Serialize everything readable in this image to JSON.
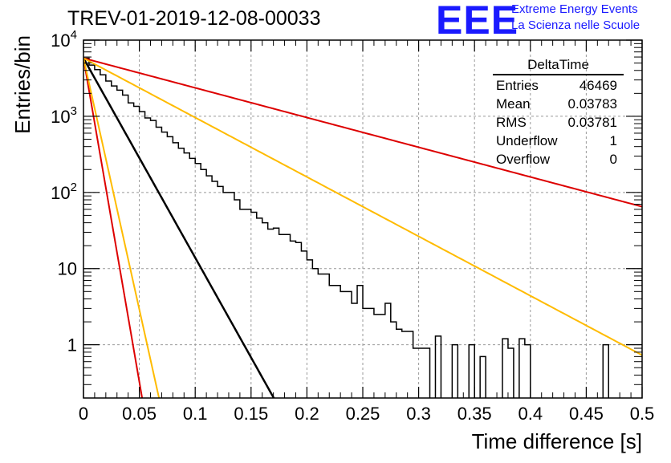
{
  "chart_data": {
    "type": "histogram",
    "title": "TREV-01-2019-12-08-00033",
    "xlabel": "Time difference [s]",
    "ylabel": "Entries/bin",
    "xlim": [
      0,
      0.5
    ],
    "ylim": [
      0.2,
      10000
    ],
    "yscale": "log",
    "grid": true,
    "x_ticks": [
      "0",
      "0.05",
      "0.1",
      "0.15",
      "0.2",
      "0.25",
      "0.3",
      "0.35",
      "0.4",
      "0.45",
      "0.5"
    ],
    "x_tick_values": [
      0,
      0.05,
      0.1,
      0.15,
      0.2,
      0.25,
      0.3,
      0.35,
      0.4,
      0.45,
      0.5
    ],
    "y_ticks": [
      "1",
      "10",
      "10^2",
      "10^3",
      "10^4"
    ],
    "y_tick_values": [
      1,
      10,
      100,
      1000,
      10000
    ],
    "bin_width": 0.005,
    "bin_values": [
      5800,
      4700,
      4100,
      3500,
      2900,
      2500,
      2200,
      1900,
      1500,
      1350,
      1150,
      950,
      880,
      720,
      620,
      540,
      450,
      380,
      330,
      280,
      240,
      200,
      165,
      140,
      120,
      100,
      100,
      80,
      60,
      60,
      55,
      46,
      40,
      33,
      34,
      28,
      28,
      23,
      22,
      17,
      13,
      10,
      8.5,
      8.5,
      6,
      6,
      5,
      5,
      3.5,
      6,
      3.0,
      3.0,
      2.5,
      2.5,
      3.5,
      2.0,
      1.6,
      1.5,
      1.5,
      0.9,
      0.9,
      0.9,
      0,
      1.3,
      0,
      0,
      1,
      0,
      0,
      1,
      0,
      0.7,
      0,
      0,
      0,
      1.2,
      0.9,
      0,
      1.2,
      1,
      0,
      0,
      0,
      0,
      0,
      0,
      0,
      0,
      0,
      0,
      0,
      0,
      0,
      1,
      0,
      0,
      0,
      0,
      0,
      0
    ],
    "fits": [
      {
        "color": "#000000",
        "y0": 5800,
        "slope_per_s": -26.2
      },
      {
        "color": "#dd0000",
        "y0": 5800,
        "slope_per_s": -3.9
      },
      {
        "color": "#ffbb00",
        "y0": 5800,
        "slope_per_s": -7.8
      },
      {
        "color": "#dd0000",
        "y0": 5800,
        "slope_per_s": -85
      },
      {
        "color": "#ffbb00",
        "y0": 5800,
        "slope_per_s": -66
      }
    ]
  },
  "stats": {
    "title": "DeltaTime",
    "rows": [
      {
        "key": "Entries",
        "value": "46469"
      },
      {
        "key": "Mean",
        "value": "0.03783"
      },
      {
        "key": "RMS",
        "value": "0.03781"
      },
      {
        "key": "Underflow",
        "value": "1"
      },
      {
        "key": "Overflow",
        "value": "0"
      }
    ]
  },
  "logo": {
    "mark": "EEE",
    "line1": "Extreme Energy Events",
    "line2": "La Scienza nelle Scuole"
  }
}
